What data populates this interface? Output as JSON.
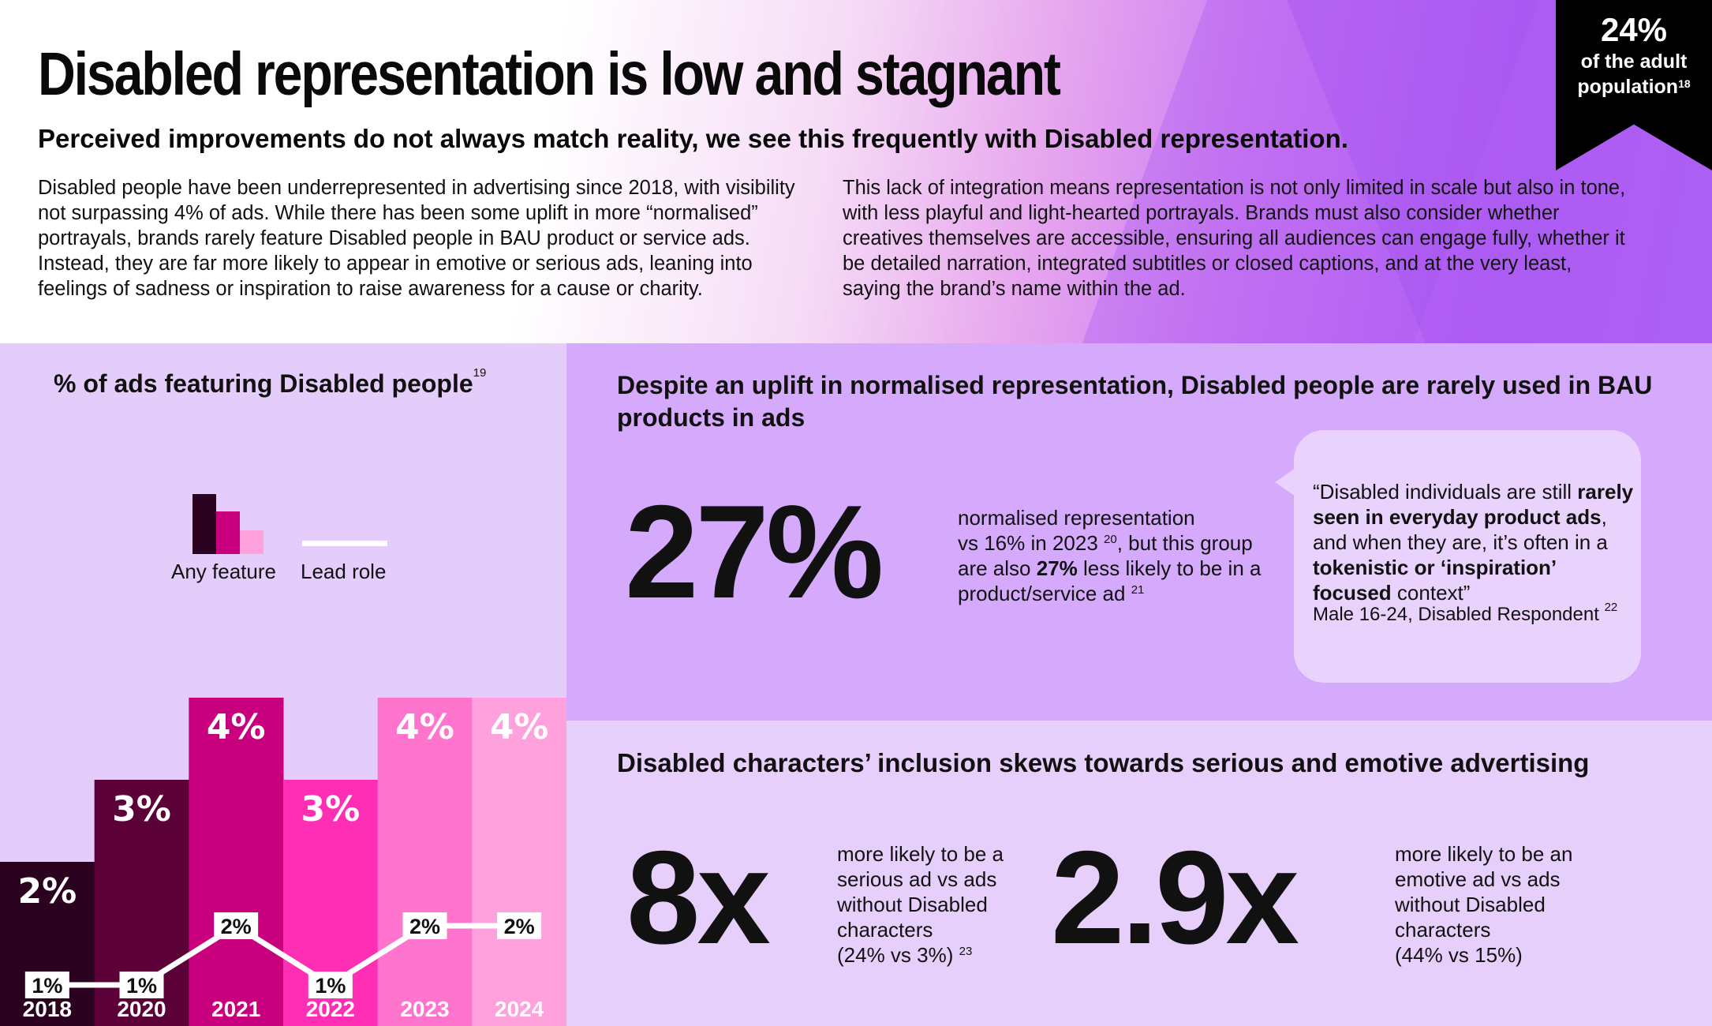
{
  "header": {
    "title": "Disabled representation is low and stagnant",
    "subtitle": "Perceived improvements do not always match reality, we see this frequently with Disabled representation.",
    "intro_left": "Disabled people have been underrepresented in advertising since 2018, with visibility not surpassing 4% of ads. While there has been some uplift in more “normalised” portrayals, brands rarely feature Disabled people in BAU product or service ads. Instead, they are far more likely to appear in emotive or serious ads, leaning into feelings of sadness or inspiration to raise awareness for a cause or charity.",
    "intro_right": "This lack of integration means representation is not only limited in scale but also in tone, with less playful and light-hearted portrayals. Brands must also consider whether creatives themselves are accessible, ensuring all audiences can engage fully, whether it be detailed narration, integrated subtitles or closed captions, and at the very least, saying the brand’s name within the ad.",
    "ribbon": {
      "value": "24%",
      "label_line1": "of the adult",
      "label_line2": "population",
      "footnote": "18"
    }
  },
  "chart_panel": {
    "title": "% of ads featuring Disabled people",
    "title_footnote": "19",
    "legend_any": "Any feature",
    "legend_lead": "Lead role"
  },
  "chart_data": {
    "type": "bar",
    "title": "% of ads featuring Disabled people",
    "categories": [
      "2018",
      "2020",
      "2021",
      "2022",
      "2023",
      "2024"
    ],
    "series": [
      {
        "name": "Any feature",
        "values": [
          2,
          3,
          4,
          3,
          4,
          4
        ],
        "labels": [
          "2%",
          "3%",
          "4%",
          "3%",
          "4%",
          "4%"
        ]
      },
      {
        "name": "Lead role",
        "type": "line",
        "values": [
          1,
          1,
          2,
          1,
          2,
          2
        ],
        "labels": [
          "1%",
          "1%",
          "2%",
          "1%",
          "2%",
          "2%"
        ]
      }
    ],
    "bar_colors": [
      "#2b0320",
      "#5c0038",
      "#c8007d",
      "#ff2fb5",
      "#ff74cd",
      "#ffa1dd"
    ],
    "line_color": "#ffffff",
    "legend": "top"
  },
  "stat_panel": {
    "title": "Despite an uplift in normalised representation, Disabled people are rarely used in BAU products in ads",
    "big_value": "27%",
    "desc_line1": "normalised representation",
    "desc_line2_a": "vs 16% in 2023",
    "desc_fn1": "20",
    "desc_line2_b": ", but this group",
    "desc_line3_a": "are also",
    "desc_bold": "27%",
    "desc_line3_b": "less likely to be in a",
    "desc_line4": "product/service ad",
    "desc_fn2": "21",
    "quote": {
      "p1": "“Disabled individuals are still",
      "b1": "rarely seen in everyday product ads",
      "p2": ", and when they are, it’s often in a",
      "b2": "tokenistic or ‘inspiration’ focused",
      "p3": "context”",
      "attribution": "Male 16-24, Disabled Respondent",
      "footnote": "22"
    }
  },
  "skew_panel": {
    "title": "Disabled characters’ inclusion skews towards serious and emotive advertising",
    "stat1": {
      "value": "8x",
      "desc_lines": [
        "more likely to be a",
        "serious ad vs ads",
        "without Disabled",
        "characters"
      ],
      "comparison": "(24% vs 3%)",
      "footnote": "23"
    },
    "stat2": {
      "value": "2.9x",
      "desc_lines": [
        "more likely to be an",
        "emotive ad vs ads",
        "without Disabled",
        "characters"
      ],
      "comparison": "(44% vs 15%)"
    }
  }
}
